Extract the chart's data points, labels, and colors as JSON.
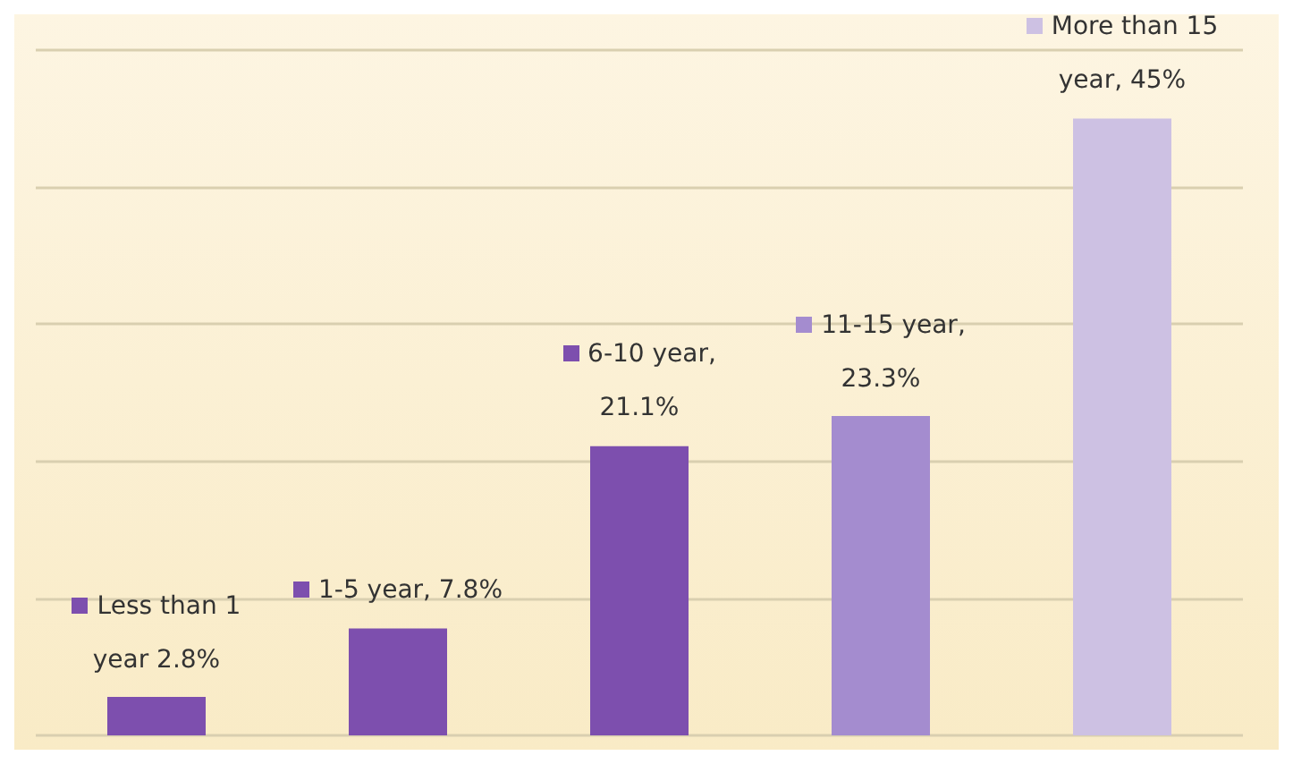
{
  "chart_data": {
    "type": "bar",
    "categories": [
      null,
      null,
      null,
      null,
      null
    ],
    "values": [
      2.8,
      7.8,
      21.1,
      23.3,
      45
    ],
    "colors": [
      "#7d4fae",
      "#7d4fae",
      "#7d4fae",
      "#a48ccf",
      "#cdc1e3"
    ],
    "value_labels": [
      "Less than 1 year 2.8%",
      "1-5 year, 7.8%",
      "6-10 year, 21.1%",
      "11-15 year, 23.3%",
      "More than 15 year, 45%"
    ],
    "ylim": [
      0,
      50
    ],
    "yticks": [
      {
        "value": 0,
        "label": null
      },
      {
        "value": 10,
        "label": null
      },
      {
        "value": 20,
        "label": null
      },
      {
        "value": 30,
        "label": null
      },
      {
        "value": 40,
        "label": null
      },
      {
        "value": 50,
        "label": null
      }
    ],
    "grid": "y"
  }
}
